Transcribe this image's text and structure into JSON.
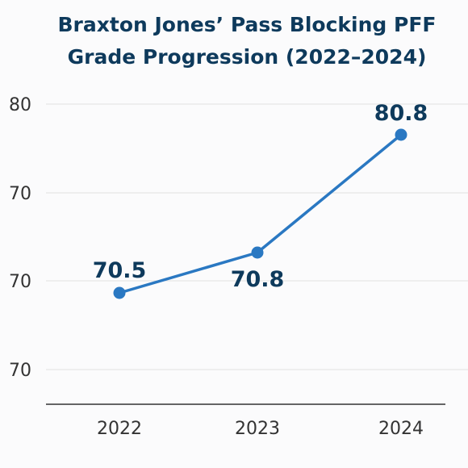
{
  "chart_data": {
    "type": "line",
    "title_lines": [
      "Braxton Jones’ Pass Blocking PFF",
      "Grade Progression (2022–2024)"
    ],
    "categories": [
      "2022",
      "2023",
      "2024"
    ],
    "series": [
      {
        "values": [
          70.5,
          70.8,
          80.8
        ],
        "point_labels": [
          "70.5",
          "70.8",
          "80.8"
        ]
      }
    ],
    "y_tick_labels": [
      "80",
      "70",
      "70",
      "70"
    ],
    "grid": true,
    "legend": "none",
    "colors": {
      "line": "#2a78c2",
      "title": "#0e3a5c",
      "labels": "#0e3a5c"
    }
  }
}
